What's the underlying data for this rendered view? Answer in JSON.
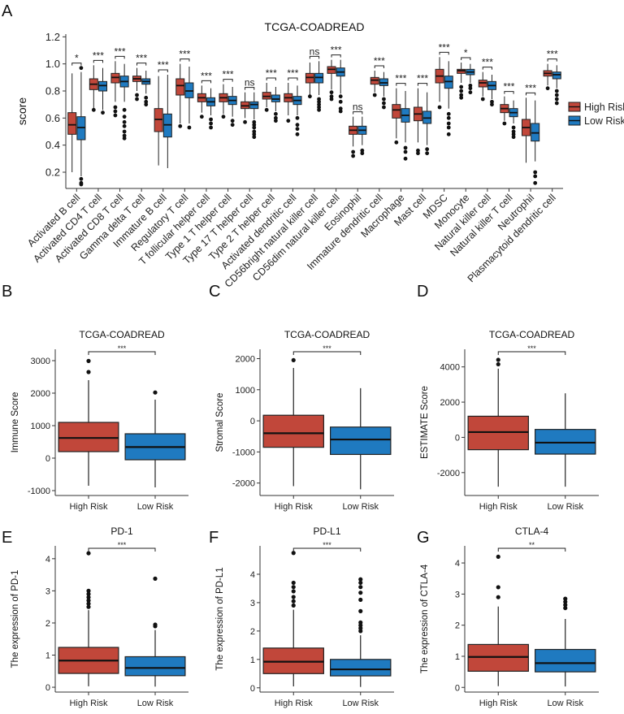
{
  "colors": {
    "high": "#C1473A",
    "low": "#1F7AC0",
    "axis": "#333333",
    "text": "#222222"
  },
  "chart_data": [
    {
      "panel": "A",
      "type": "box",
      "title": "TCGA-COADREAD",
      "ylabel": "score",
      "ylim": [
        0.08,
        1.22
      ],
      "yticks": [
        0.2,
        0.4,
        0.6,
        0.8,
        1.0,
        1.2
      ],
      "ytick_labels": [
        "0.2",
        "0.4",
        "0.6",
        "0.8",
        "1.0",
        "1.2"
      ],
      "legend": {
        "title": "",
        "placement": "right",
        "entries": [
          "High Risk",
          "Low Risk"
        ]
      },
      "categories": [
        {
          "name": "Activated B cell",
          "sig": "*",
          "high": {
            "min": 0.2,
            "q1": 0.48,
            "med": 0.55,
            "q3": 0.64,
            "max": 0.93,
            "out": []
          },
          "low": {
            "min": 0.17,
            "q1": 0.44,
            "med": 0.53,
            "q3": 0.61,
            "max": 0.94,
            "out": [
              0.15,
              0.12,
              0.11,
              0.97
            ]
          }
        },
        {
          "name": "Activated CD4 T cell",
          "sig": "***",
          "high": {
            "min": 0.67,
            "q1": 0.81,
            "med": 0.85,
            "q3": 0.89,
            "max": 0.99,
            "out": [
              0.66
            ]
          },
          "low": {
            "min": 0.66,
            "q1": 0.8,
            "med": 0.84,
            "q3": 0.87,
            "max": 0.97,
            "out": [
              0.64
            ]
          }
        },
        {
          "name": "Activated CD8 T cell",
          "sig": "***",
          "high": {
            "min": 0.72,
            "q1": 0.86,
            "med": 0.9,
            "q3": 0.93,
            "max": 1.02,
            "out": [
              0.68,
              0.65,
              0.62
            ]
          },
          "low": {
            "min": 0.72,
            "q1": 0.83,
            "med": 0.87,
            "q3": 0.91,
            "max": 1.0,
            "out": [
              0.66,
              0.61,
              0.57,
              0.54,
              0.5,
              0.47,
              0.45
            ]
          }
        },
        {
          "name": "Gamma delta T cell",
          "sig": "***",
          "high": {
            "min": 0.8,
            "q1": 0.87,
            "med": 0.89,
            "q3": 0.91,
            "max": 0.97,
            "out": [
              0.77,
              0.74
            ]
          },
          "low": {
            "min": 0.78,
            "q1": 0.85,
            "med": 0.87,
            "q3": 0.89,
            "max": 0.95,
            "out": [
              0.75,
              0.72,
              0.7
            ]
          }
        },
        {
          "name": "Immature B cell",
          "sig": "***",
          "high": {
            "min": 0.25,
            "q1": 0.5,
            "med": 0.59,
            "q3": 0.67,
            "max": 0.91,
            "out": []
          },
          "low": {
            "min": 0.23,
            "q1": 0.46,
            "med": 0.55,
            "q3": 0.63,
            "max": 0.92,
            "out": []
          }
        },
        {
          "name": "Regulatory T cell",
          "sig": "***",
          "high": {
            "min": 0.56,
            "q1": 0.77,
            "med": 0.84,
            "q3": 0.89,
            "max": 1.0,
            "out": [
              0.54
            ]
          },
          "low": {
            "min": 0.56,
            "q1": 0.75,
            "med": 0.8,
            "q3": 0.86,
            "max": 0.98,
            "out": [
              0.53
            ]
          }
        },
        {
          "name": "T follicular helper cell",
          "sig": "***",
          "high": {
            "min": 0.64,
            "q1": 0.72,
            "med": 0.75,
            "q3": 0.78,
            "max": 0.84,
            "out": [
              0.61
            ]
          },
          "low": {
            "min": 0.62,
            "q1": 0.69,
            "med": 0.72,
            "q3": 0.75,
            "max": 0.82,
            "out": [
              0.59,
              0.56,
              0.53
            ]
          }
        },
        {
          "name": "Type 1 T helper cell",
          "sig": "***",
          "high": {
            "min": 0.63,
            "q1": 0.72,
            "med": 0.75,
            "q3": 0.78,
            "max": 0.85,
            "out": [
              0.61
            ]
          },
          "low": {
            "min": 0.61,
            "q1": 0.7,
            "med": 0.73,
            "q3": 0.76,
            "max": 0.83,
            "out": [
              0.58,
              0.55
            ]
          }
        },
        {
          "name": "Type 17 T helper cell",
          "sig": "ns",
          "high": {
            "min": 0.6,
            "q1": 0.67,
            "med": 0.69,
            "q3": 0.72,
            "max": 0.79,
            "out": [
              0.57
            ]
          },
          "low": {
            "min": 0.59,
            "q1": 0.67,
            "med": 0.7,
            "q3": 0.72,
            "max": 0.79,
            "out": [
              0.57,
              0.55,
              0.53,
              0.5,
              0.48,
              0.46
            ]
          }
        },
        {
          "name": "Type 2 T helper cell",
          "sig": "***",
          "high": {
            "min": 0.68,
            "q1": 0.74,
            "med": 0.76,
            "q3": 0.79,
            "max": 0.86,
            "out": [
              0.66
            ]
          },
          "low": {
            "min": 0.65,
            "q1": 0.72,
            "med": 0.74,
            "q3": 0.77,
            "max": 0.83,
            "out": [
              0.63,
              0.6,
              0.58
            ]
          }
        },
        {
          "name": "Activated dendritic cell",
          "sig": "***",
          "high": {
            "min": 0.62,
            "q1": 0.72,
            "med": 0.75,
            "q3": 0.78,
            "max": 0.86,
            "out": [
              0.58
            ]
          },
          "low": {
            "min": 0.62,
            "q1": 0.7,
            "med": 0.73,
            "q3": 0.76,
            "max": 0.84,
            "out": [
              0.6,
              0.55,
              0.52,
              0.48
            ]
          }
        },
        {
          "name": "CD56bright natural killer cell",
          "sig": "ns",
          "high": {
            "min": 0.77,
            "q1": 0.86,
            "med": 0.9,
            "q3": 0.93,
            "max": 1.01,
            "out": [
              0.76
            ]
          },
          "low": {
            "min": 0.77,
            "q1": 0.86,
            "med": 0.9,
            "q3": 0.93,
            "max": 1.02,
            "out": [
              0.74,
              0.72,
              0.7,
              0.68,
              0.66
            ]
          }
        },
        {
          "name": "CD56dim natural killer cell",
          "sig": "***",
          "high": {
            "min": 0.81,
            "q1": 0.93,
            "med": 0.96,
            "q3": 0.98,
            "max": 1.03,
            "out": [
              0.79,
              0.76,
              0.74
            ]
          },
          "low": {
            "min": 0.78,
            "q1": 0.91,
            "med": 0.94,
            "q3": 0.97,
            "max": 1.03,
            "out": [
              0.76,
              0.72,
              0.67,
              0.65
            ]
          }
        },
        {
          "name": "Eosinophil",
          "sig": "ns",
          "high": {
            "min": 0.39,
            "q1": 0.48,
            "med": 0.51,
            "q3": 0.54,
            "max": 0.61,
            "out": [
              0.35,
              0.32
            ]
          },
          "low": {
            "min": 0.4,
            "q1": 0.48,
            "med": 0.51,
            "q3": 0.54,
            "max": 0.61,
            "out": [
              0.36,
              0.34
            ]
          }
        },
        {
          "name": "Immature dendritic cell",
          "sig": "***",
          "high": {
            "min": 0.79,
            "q1": 0.85,
            "med": 0.88,
            "q3": 0.9,
            "max": 0.95,
            "out": [
              0.77
            ]
          },
          "low": {
            "min": 0.76,
            "q1": 0.84,
            "med": 0.86,
            "q3": 0.89,
            "max": 0.94,
            "out": [
              0.74,
              0.71,
              0.68
            ]
          }
        },
        {
          "name": "Macrophage",
          "sig": "***",
          "high": {
            "min": 0.45,
            "q1": 0.6,
            "med": 0.66,
            "q3": 0.7,
            "max": 0.82,
            "out": [
              0.42
            ]
          },
          "low": {
            "min": 0.42,
            "q1": 0.57,
            "med": 0.62,
            "q3": 0.67,
            "max": 0.8,
            "out": [
              0.38,
              0.35,
              0.3
            ]
          }
        },
        {
          "name": "Mast cell",
          "sig": "***",
          "high": {
            "min": 0.42,
            "q1": 0.58,
            "med": 0.63,
            "q3": 0.68,
            "max": 0.82,
            "out": [
              0.36,
              0.34
            ]
          },
          "low": {
            "min": 0.4,
            "q1": 0.56,
            "med": 0.6,
            "q3": 0.65,
            "max": 0.79,
            "out": [
              0.37,
              0.34
            ]
          }
        },
        {
          "name": "MDSC",
          "sig": "***",
          "high": {
            "min": 0.72,
            "q1": 0.86,
            "med": 0.91,
            "q3": 0.96,
            "max": 1.05,
            "out": [
              0.68
            ]
          },
          "low": {
            "min": 0.67,
            "q1": 0.82,
            "med": 0.87,
            "q3": 0.91,
            "max": 1.02,
            "out": [
              0.63,
              0.6,
              0.56,
              0.53,
              0.48
            ]
          }
        },
        {
          "name": "Monocyte",
          "sig": "*",
          "high": {
            "min": 0.86,
            "q1": 0.93,
            "med": 0.95,
            "q3": 0.96,
            "max": 1.01,
            "out": [
              0.83,
              0.8,
              0.77,
              0.75
            ]
          },
          "low": {
            "min": 0.86,
            "q1": 0.92,
            "med": 0.94,
            "q3": 0.96,
            "max": 1.0,
            "out": [
              0.84,
              0.82,
              0.79
            ]
          }
        },
        {
          "name": "Natural killer cell",
          "sig": "***",
          "high": {
            "min": 0.76,
            "q1": 0.83,
            "med": 0.86,
            "q3": 0.88,
            "max": 0.94,
            "out": [
              0.74
            ]
          },
          "low": {
            "min": 0.74,
            "q1": 0.81,
            "med": 0.84,
            "q3": 0.87,
            "max": 0.92,
            "out": [
              0.72,
              0.7
            ]
          }
        },
        {
          "name": "Natural killer T cell",
          "sig": "***",
          "high": {
            "min": 0.58,
            "q1": 0.64,
            "med": 0.67,
            "q3": 0.7,
            "max": 0.76,
            "out": [
              0.56
            ]
          },
          "low": {
            "min": 0.56,
            "q1": 0.61,
            "med": 0.64,
            "q3": 0.67,
            "max": 0.73,
            "out": [
              0.53,
              0.5,
              0.48,
              0.46
            ]
          }
        },
        {
          "name": "Neutrophil",
          "sig": "***",
          "high": {
            "min": 0.27,
            "q1": 0.47,
            "med": 0.53,
            "q3": 0.59,
            "max": 0.75,
            "out": []
          },
          "low": {
            "min": 0.28,
            "q1": 0.43,
            "med": 0.49,
            "q3": 0.56,
            "max": 0.73,
            "out": [
              0.2,
              0.17,
              0.12
            ]
          }
        },
        {
          "name": "Plasmacytoid dendritic cell",
          "sig": "***",
          "high": {
            "min": 0.84,
            "q1": 0.91,
            "med": 0.93,
            "q3": 0.95,
            "max": 1.0,
            "out": [
              0.82
            ]
          },
          "low": {
            "min": 0.82,
            "q1": 0.89,
            "med": 0.92,
            "q3": 0.94,
            "max": 0.99,
            "out": [
              0.8,
              0.77,
              0.74,
              0.71
            ]
          }
        }
      ]
    },
    {
      "panel": "B",
      "type": "box",
      "title": "TCGA-COADREAD",
      "ylabel": "Immune Score",
      "sig": "***",
      "ylim": [
        -1150,
        3350
      ],
      "yticks": [
        -1000,
        0,
        1000,
        2000,
        3000
      ],
      "ytick_labels": [
        "-1000",
        "0",
        "1000",
        "2000",
        "3000"
      ],
      "categories": [
        "High Risk",
        "Low Risk"
      ],
      "boxes": [
        {
          "min": -850,
          "q1": 200,
          "med": 620,
          "q3": 1100,
          "max": 2400,
          "out": [
            2650,
            2990
          ]
        },
        {
          "min": -900,
          "q1": -50,
          "med": 340,
          "q3": 750,
          "max": 1800,
          "out": [
            2020
          ]
        }
      ]
    },
    {
      "panel": "C",
      "type": "box",
      "title": "TCGA-COADREAD",
      "ylabel": "Stromal Score",
      "sig": "***",
      "ylim": [
        -2400,
        2300
      ],
      "yticks": [
        -2000,
        -1000,
        0,
        1000,
        2000
      ],
      "ytick_labels": [
        "-2000",
        "-1000",
        "0",
        "1000",
        "2000"
      ],
      "categories": [
        "High Risk",
        "Low Risk"
      ],
      "boxes": [
        {
          "min": -2100,
          "q1": -850,
          "med": -400,
          "q3": 180,
          "max": 1700,
          "out": [
            1950
          ]
        },
        {
          "min": -2200,
          "q1": -1080,
          "med": -600,
          "q3": -200,
          "max": 1050,
          "out": []
        }
      ]
    },
    {
      "panel": "D",
      "type": "box",
      "title": "TCGA-COADREAD",
      "ylabel": "ESTIMATE Score",
      "sig": "***",
      "ylim": [
        -3300,
        5000
      ],
      "yticks": [
        -2000,
        0,
        2000,
        4000
      ],
      "ytick_labels": [
        "-2000",
        "0",
        "2000",
        "4000"
      ],
      "categories": [
        "High Risk",
        "Low Risk"
      ],
      "boxes": [
        {
          "min": -2800,
          "q1": -700,
          "med": 300,
          "q3": 1200,
          "max": 3900,
          "out": [
            4150,
            4400
          ]
        },
        {
          "min": -2800,
          "q1": -950,
          "med": -300,
          "q3": 450,
          "max": 2500,
          "out": []
        }
      ]
    },
    {
      "panel": "E",
      "type": "box",
      "title": "PD-1",
      "ylabel": "The expression of PD-1",
      "sig": "***",
      "ylim": [
        -0.15,
        4.4
      ],
      "yticks": [
        0,
        1,
        2,
        3,
        4
      ],
      "ytick_labels": [
        "0",
        "1",
        "2",
        "3",
        "4"
      ],
      "categories": [
        "High Risk",
        "Low Risk"
      ],
      "boxes": [
        {
          "min": 0.03,
          "q1": 0.43,
          "med": 0.83,
          "q3": 1.24,
          "max": 2.4,
          "out": [
            2.5,
            2.6,
            2.7,
            2.8,
            2.9,
            3.0,
            4.17
          ]
        },
        {
          "min": 0.02,
          "q1": 0.36,
          "med": 0.6,
          "q3": 0.95,
          "max": 1.78,
          "out": [
            1.9,
            1.95,
            3.38
          ]
        }
      ]
    },
    {
      "panel": "F",
      "type": "box",
      "title": "PD-L1",
      "ylabel": "The expression of PD-L1",
      "sig": "***",
      "ylim": [
        -0.15,
        5.0
      ],
      "yticks": [
        0,
        1,
        2,
        3,
        4
      ],
      "ytick_labels": [
        "0",
        "1",
        "2",
        "3",
        "4"
      ],
      "categories": [
        "High Risk",
        "Low Risk"
      ],
      "boxes": [
        {
          "min": 0.05,
          "q1": 0.5,
          "med": 0.92,
          "q3": 1.4,
          "max": 2.75,
          "out": [
            2.9,
            3.05,
            3.2,
            3.4,
            3.55,
            3.7,
            4.75
          ]
        },
        {
          "min": 0.03,
          "q1": 0.42,
          "med": 0.65,
          "q3": 1.0,
          "max": 1.85,
          "out": [
            2.0,
            2.1,
            2.2,
            2.3,
            2.7,
            3.1,
            3.35,
            3.55,
            3.7,
            3.82
          ]
        }
      ]
    },
    {
      "panel": "G",
      "type": "box",
      "title": "CTLA-4",
      "ylabel": "The expression of CTLA-4",
      "sig": "**",
      "ylim": [
        -0.15,
        4.55
      ],
      "yticks": [
        0,
        1,
        2,
        3,
        4
      ],
      "ytick_labels": [
        "0",
        "1",
        "2",
        "3",
        "4"
      ],
      "categories": [
        "High Risk",
        "Low Risk"
      ],
      "boxes": [
        {
          "min": 0.04,
          "q1": 0.52,
          "med": 0.98,
          "q3": 1.38,
          "max": 2.6,
          "out": [
            2.9,
            3.22,
            4.2
          ]
        },
        {
          "min": 0.03,
          "q1": 0.5,
          "med": 0.78,
          "q3": 1.22,
          "max": 2.2,
          "out": [
            2.55,
            2.65,
            2.75,
            2.85
          ]
        }
      ]
    }
  ],
  "panel_labels": [
    "A",
    "B",
    "C",
    "D",
    "E",
    "F",
    "G"
  ]
}
